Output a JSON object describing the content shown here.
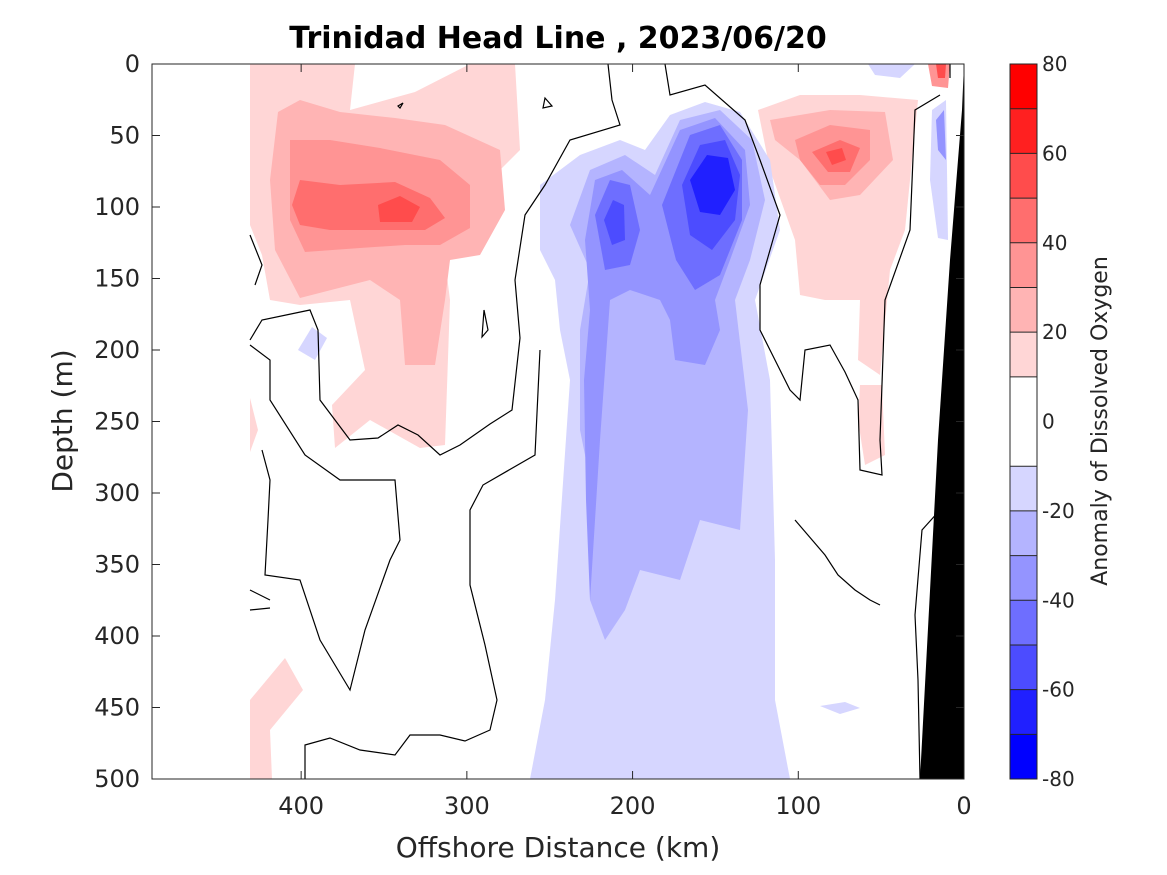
{
  "chart_data": {
    "type": "heatmap",
    "subtype": "filled-contour section",
    "title": "Trinidad Head Line , 2023/06/20",
    "xlabel": "Offshore Distance (km)",
    "ylabel": "Depth (m)",
    "xlim": [
      490,
      0
    ],
    "ylim": [
      500,
      0
    ],
    "x_reversed": true,
    "y_reversed": true,
    "xticks": [
      400,
      300,
      200,
      100,
      0
    ],
    "yticks": [
      0,
      50,
      100,
      150,
      200,
      250,
      300,
      350,
      400,
      450,
      500
    ],
    "colorbar": {
      "label": "Anomaly of Dissolved Oxygen",
      "range": [
        -80,
        80
      ],
      "levels": [
        -80,
        -70,
        -60,
        -50,
        -40,
        -30,
        -20,
        -10,
        10,
        20,
        30,
        40,
        50,
        60,
        70,
        80
      ],
      "ticks": [
        -80,
        -60,
        -40,
        -20,
        0,
        20,
        40,
        60,
        80
      ],
      "colors": [
        "#0000ff",
        "#2020ff",
        "#4c4cff",
        "#6e6eff",
        "#9494ff",
        "#b4b4ff",
        "#d6d6ff",
        "#ffffff",
        "#ffd6d6",
        "#ffb4b4",
        "#ff9494",
        "#ff6e6e",
        "#ff4c4c",
        "#ff2020",
        "#ff0000"
      ]
    },
    "data_coverage_x": [
      432,
      0
    ],
    "zero_contour_color": "#000000",
    "bathymetry_color": "#000000",
    "features": [
      {
        "name": "positive core offshore",
        "center_x": 340,
        "center_depth": 100,
        "peak_anomaly": 50
      },
      {
        "name": "negative core",
        "center_x": 148,
        "center_depth": 80,
        "peak_anomaly": -65
      },
      {
        "name": "negative secondary core",
        "center_x": 208,
        "center_depth": 115,
        "peak_anomaly": -40
      },
      {
        "name": "positive core nearshore",
        "center_x": 78,
        "center_depth": 65,
        "peak_anomaly": 50
      },
      {
        "name": "negative deep tongue",
        "x_range": [
          260,
          100
        ],
        "depth_range": [
          90,
          500
        ],
        "anomaly": -20
      }
    ]
  }
}
